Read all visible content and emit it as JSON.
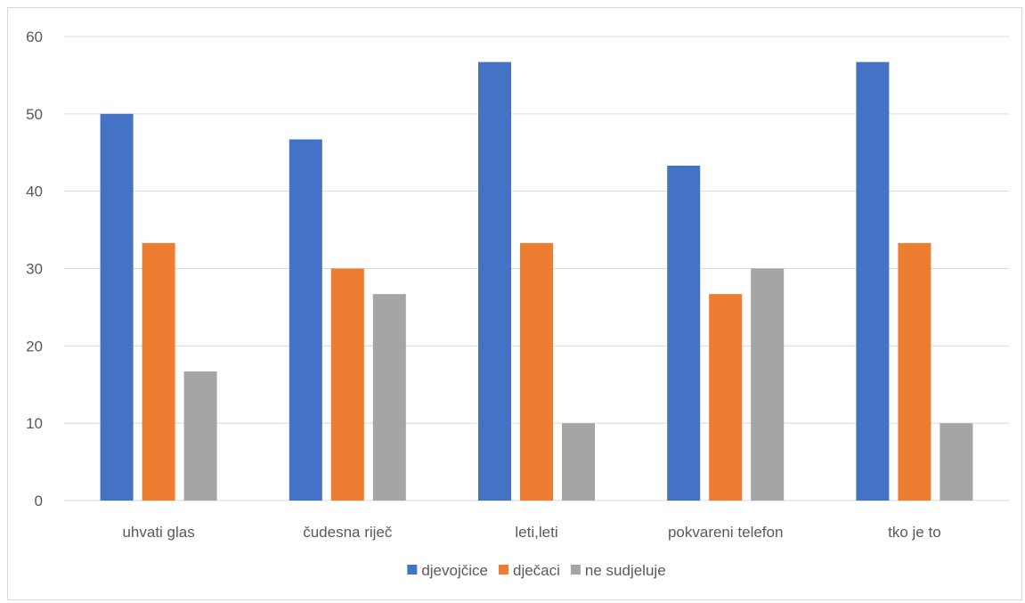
{
  "chart_data": {
    "type": "bar",
    "categories": [
      "uhvati glas",
      "čudesna riječ",
      "leti,leti",
      "pokvareni telefon",
      "tko je to"
    ],
    "series": [
      {
        "name": "djevojčice",
        "color": "#4472C4",
        "values": [
          50,
          46.7,
          56.7,
          43.3,
          56.7
        ]
      },
      {
        "name": "dječaci",
        "color": "#ED7D31",
        "values": [
          33.3,
          30,
          33.3,
          26.7,
          33.3
        ]
      },
      {
        "name": "ne sudjeluje",
        "color": "#A5A5A5",
        "values": [
          16.7,
          26.7,
          10,
          30,
          10
        ]
      }
    ],
    "ylim": [
      0,
      60
    ],
    "yticks": [
      0,
      10,
      20,
      30,
      40,
      50,
      60
    ],
    "grid": true,
    "legend": "bottom",
    "xlabel": "",
    "ylabel": ""
  }
}
